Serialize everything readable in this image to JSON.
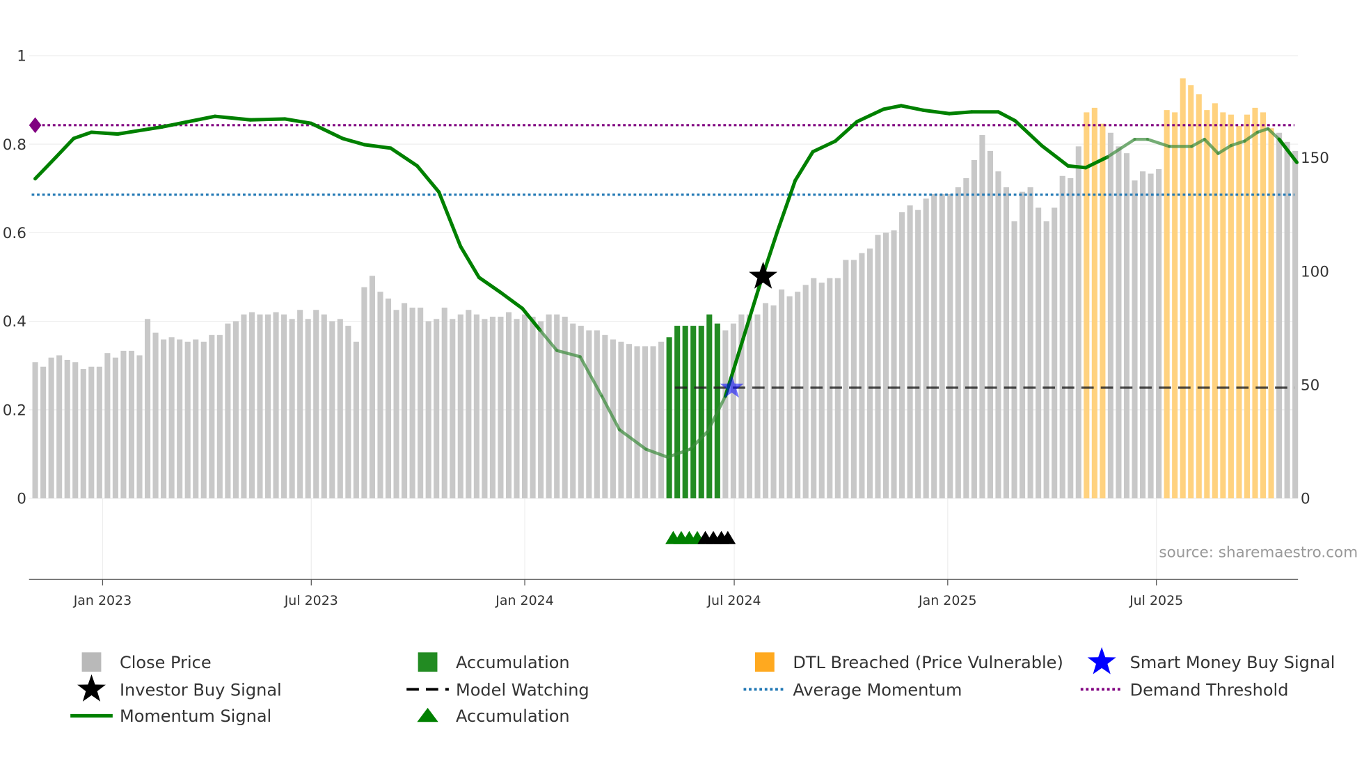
{
  "chart_data": {
    "type": "bar",
    "title": "",
    "source": "source: sharemaestro.com",
    "left_axis": {
      "range": [
        0,
        1
      ],
      "ticks": [
        "0",
        "0.2",
        "0.4",
        "0.6",
        "0.8",
        "1"
      ],
      "tick_values": [
        0,
        0.2,
        0.4,
        0.6,
        0.8,
        1
      ]
    },
    "right_axis": {
      "range": [
        0,
        195
      ],
      "ticks": [
        "0",
        "50",
        "100",
        "150"
      ],
      "tick_values": [
        0,
        50,
        100,
        150
      ]
    },
    "x_ticks": [
      {
        "label": "Jan 2023",
        "week": 8.4
      },
      {
        "label": "Jul 2023",
        "week": 34.4
      },
      {
        "label": "Jan 2024",
        "week": 61
      },
      {
        "label": "Jul 2024",
        "week": 87.1
      },
      {
        "label": "Jan 2025",
        "week": 113.7
      },
      {
        "label": "Jul 2025",
        "week": 139.7
      }
    ],
    "close_price": [
      60,
      58,
      62,
      63,
      61,
      60,
      57,
      58,
      58,
      64,
      62,
      65,
      65,
      63,
      79,
      73,
      70,
      71,
      70,
      69,
      70,
      69,
      72,
      72,
      77,
      78,
      81,
      82,
      81,
      81,
      82,
      81,
      79,
      83,
      79,
      83,
      81,
      78,
      79,
      76,
      69,
      93,
      98,
      91,
      88,
      83,
      86,
      84,
      84,
      78,
      79,
      84,
      79,
      81,
      83,
      81,
      79,
      80,
      80,
      82,
      79,
      81,
      80,
      78,
      81,
      81,
      80,
      77,
      76,
      74,
      74,
      72,
      70,
      69,
      68,
      67,
      67,
      67,
      69,
      71,
      76,
      76,
      76,
      76,
      81,
      77,
      74,
      77,
      81,
      81,
      81,
      86,
      85,
      92,
      89,
      91,
      94,
      97,
      95,
      97,
      97,
      105,
      105,
      108,
      110,
      116,
      117,
      118,
      126,
      129,
      127,
      132,
      134,
      134,
      134,
      137,
      141,
      149,
      160,
      153,
      144,
      137,
      122,
      135,
      137,
      128,
      122,
      128,
      142,
      141,
      155,
      170,
      172,
      165,
      161,
      155,
      152,
      140,
      144,
      143,
      145,
      171,
      170,
      185,
      182,
      178,
      171,
      174,
      170,
      169,
      164,
      169,
      172,
      170,
      163,
      161,
      157,
      153
    ],
    "accumulation_weeks": [
      79,
      80,
      81,
      82,
      83,
      84,
      85
    ],
    "dtl_breached_weeks": [
      131,
      132,
      133,
      141,
      142,
      143,
      144,
      145,
      146,
      147,
      148,
      149,
      150,
      151,
      152,
      153,
      154
    ],
    "momentum_signal": [
      [
        0,
        0.722
      ],
      [
        2.6,
        0.771
      ],
      [
        4.8,
        0.813
      ],
      [
        7,
        0.827
      ],
      [
        10.3,
        0.823
      ],
      [
        15.8,
        0.839
      ],
      [
        22.4,
        0.863
      ],
      [
        26.8,
        0.855
      ],
      [
        31.1,
        0.857
      ],
      [
        34.4,
        0.847
      ],
      [
        38.3,
        0.813
      ],
      [
        41,
        0.799
      ],
      [
        44.3,
        0.791
      ],
      [
        47.6,
        0.751
      ],
      [
        50.3,
        0.692
      ],
      [
        53,
        0.569
      ],
      [
        55.3,
        0.499
      ],
      [
        58,
        0.465
      ],
      [
        60.7,
        0.429
      ],
      [
        62.9,
        0.38
      ],
      [
        65,
        0.334
      ],
      [
        67.9,
        0.32
      ],
      [
        70.6,
        0.231
      ],
      [
        72.8,
        0.155
      ],
      [
        76.1,
        0.111
      ],
      [
        78.8,
        0.093
      ],
      [
        81.6,
        0.111
      ],
      [
        83.8,
        0.151
      ],
      [
        86,
        0.231
      ],
      [
        88.2,
        0.36
      ],
      [
        90.4,
        0.489
      ],
      [
        92.5,
        0.604
      ],
      [
        94.7,
        0.718
      ],
      [
        96.9,
        0.783
      ],
      [
        99.7,
        0.807
      ],
      [
        102.4,
        0.851
      ],
      [
        105.7,
        0.879
      ],
      [
        107.9,
        0.887
      ],
      [
        110.6,
        0.877
      ],
      [
        113.9,
        0.869
      ],
      [
        116.7,
        0.873
      ],
      [
        120,
        0.873
      ],
      [
        122.1,
        0.853
      ],
      [
        125.4,
        0.797
      ],
      [
        128.7,
        0.751
      ],
      [
        130.9,
        0.747
      ],
      [
        133.6,
        0.771
      ],
      [
        137,
        0.811
      ],
      [
        138.6,
        0.811
      ],
      [
        141.3,
        0.795
      ],
      [
        144.1,
        0.795
      ],
      [
        145.7,
        0.811
      ],
      [
        147.4,
        0.779
      ],
      [
        149,
        0.797
      ],
      [
        150.7,
        0.807
      ],
      [
        152.3,
        0.827
      ],
      [
        153.6,
        0.835
      ],
      [
        155,
        0.811
      ],
      [
        157.2,
        0.759
      ]
    ],
    "faded_momentum_ranges": [
      [
        61,
        86
      ],
      [
        131,
        154
      ]
    ],
    "demand_threshold": 0.843,
    "average_momentum": 0.686,
    "model_watching": {
      "value": 0.25,
      "start_week": 79.7
    },
    "investor_buy_signal": [
      {
        "week": 90.7,
        "value": 0.501
      }
    ],
    "smart_money_buy_signal": [
      {
        "week": 86.8,
        "value": 0.25
      }
    ],
    "accumulation_markers": [
      79.5,
      80.5,
      81.5,
      82.5
    ],
    "investor_markers": [
      83.5,
      84.5,
      85.5,
      86.3
    ],
    "colors": {
      "price": "#c8c8c8",
      "accumulation": "#228b22",
      "dtl": "#ffd27f",
      "momentum": "#008000",
      "demand": "#800080",
      "average": "#1f77b4",
      "model": "#000000",
      "smart": "#0000ff"
    },
    "legend": [
      {
        "label": "Close Price",
        "symbol": "square",
        "color": "#b9b9b9"
      },
      {
        "label": "Accumulation",
        "symbol": "square",
        "color": "#228b22"
      },
      {
        "label": "DTL Breached (Price Vulnerable)",
        "symbol": "square",
        "color": "#ffa91f"
      },
      {
        "label": "Smart Money Buy Signal",
        "symbol": "star",
        "color": "#0000ff"
      },
      {
        "label": "Investor Buy Signal",
        "symbol": "star",
        "color": "#000000"
      },
      {
        "label": "Model Watching",
        "symbol": "dash",
        "color": "#000000"
      },
      {
        "label": "Average Momentum",
        "symbol": "dot",
        "color": "#1f77b4"
      },
      {
        "label": "Demand Threshold",
        "symbol": "dot",
        "color": "#800080"
      },
      {
        "label": "Momentum Signal",
        "symbol": "line",
        "color": "#008000"
      },
      {
        "label": "Accumulation",
        "symbol": "triangle",
        "color": "#008000"
      }
    ]
  }
}
